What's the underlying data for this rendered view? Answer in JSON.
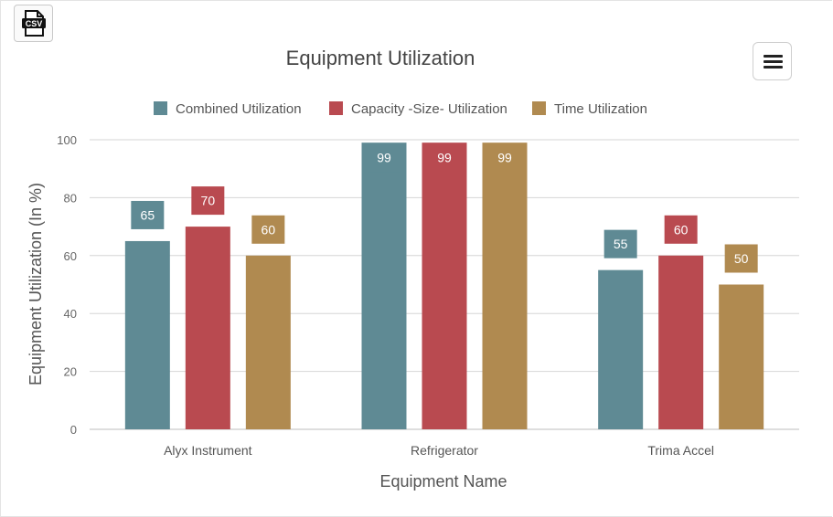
{
  "toolbar": {
    "csv_icon_label": "CSV",
    "csv_icon": "csv-file-icon",
    "menu_icon": "hamburger-menu-icon"
  },
  "colors": {
    "combined": "#5f8a94",
    "capacity": "#b94a50",
    "time": "#b08a50",
    "grid": "#d6d6d6",
    "text": "#555555"
  },
  "chart_data": {
    "type": "bar",
    "title": "Equipment Utilization",
    "xlabel": "Equipment Name",
    "ylabel": "Equipment Utilization (In %)",
    "categories": [
      "Alyx Instrument",
      "Refrigerator",
      "Trima Accel"
    ],
    "series": [
      {
        "name": "Combined Utilization",
        "values": [
          65,
          99,
          55
        ],
        "color": "#5f8a94"
      },
      {
        "name": "Capacity -Size- Utilization",
        "values": [
          70,
          99,
          60
        ],
        "color": "#b94a50"
      },
      {
        "name": "Time Utilization",
        "values": [
          60,
          99,
          50
        ],
        "color": "#b08a50"
      }
    ],
    "ylim": [
      0,
      100
    ],
    "yticks": [
      0,
      20,
      40,
      60,
      80,
      100
    ],
    "grid": true,
    "legend_position": "top"
  }
}
